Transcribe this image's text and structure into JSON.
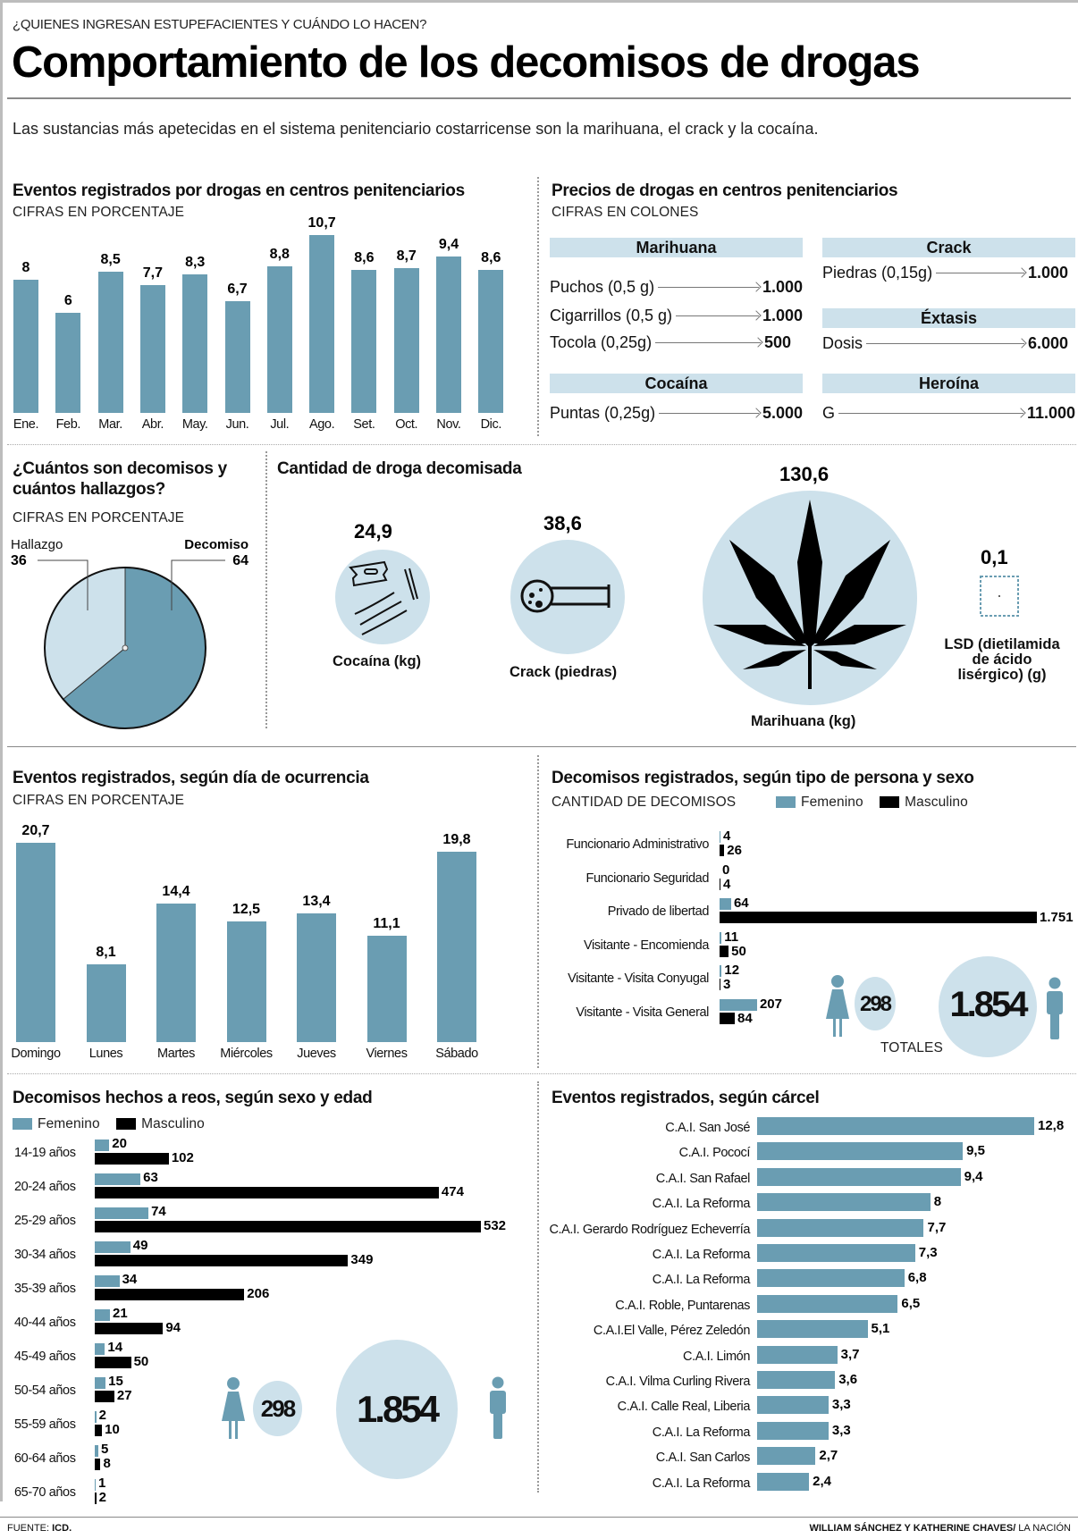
{
  "header": {
    "kicker": "¿QUIENES INGRESAN ESTUPEFACIENTES Y CUÁNDO LO HACEN?",
    "title": "Comportamiento de los decomisos de drogas",
    "intro": "Las sustancias más apetecidas en el sistema penitenciario costarricense son la marihuana, el crack y la cocaína."
  },
  "colors": {
    "bar": "#6a9db2",
    "light": "#cde1eb",
    "masculino": "#000000"
  },
  "prices": {
    "title": "Precios de drogas en centros penitenciarios",
    "subtitle": "CIFRAS EN COLONES",
    "groups": [
      {
        "name": "Marihuana",
        "items": [
          {
            "label": "Puchos (0,5 g)",
            "value": "1.000"
          },
          {
            "label": "Cigarrillos (0,5 g)",
            "value": "1.000"
          },
          {
            "label": "Tocola (0,25g)",
            "value": "500"
          }
        ]
      },
      {
        "name": "Crack",
        "items": [
          {
            "label": "Piedras (0,15g)",
            "value": "1.000"
          }
        ]
      },
      {
        "name": "Éxtasis",
        "items": [
          {
            "label": "Dosis",
            "value": "6.000"
          }
        ]
      },
      {
        "name": "Cocaína",
        "items": [
          {
            "label": "Puntas (0,25g)",
            "value": "5.000"
          }
        ]
      },
      {
        "name": "Heroína",
        "items": [
          {
            "label": "G",
            "value": "11.000"
          }
        ]
      }
    ]
  },
  "seized": {
    "title": "Cantidad de droga decomisada",
    "items": [
      {
        "name": "Cocaína (kg)",
        "value": "24,9",
        "icon": "cocaine-icon"
      },
      {
        "name": "Crack (piedras)",
        "value": "38,6",
        "icon": "crack-pipe-icon"
      },
      {
        "name": "Marihuana (kg)",
        "value": "130,6",
        "icon": "cannabis-leaf-icon"
      },
      {
        "name_lines": [
          "LSD (dietilamida",
          "de ácido",
          "lisérgico) (g)"
        ],
        "value": "0,1",
        "icon": "lsd-stamp-icon"
      }
    ]
  },
  "totals": {
    "label": "TOTALES",
    "femenino": "298",
    "masculino": "1.854"
  },
  "legend": {
    "femenino": "Femenino",
    "masculino": "Masculino"
  },
  "footer": {
    "source_prefix": "FUENTE: ",
    "source": "ICD.",
    "credit_bold": "WILLIAM SÁNCHEZ Y KATHERINE CHAVES/",
    "credit": " LA NACIÓN"
  },
  "chart_data": [
    {
      "id": "monthly",
      "type": "bar",
      "title": "Eventos registrados por drogas en centros penitenciarios",
      "subtitle": "CIFRAS EN PORCENTAJE",
      "categories": [
        "Ene.",
        "Feb.",
        "Mar.",
        "Abr.",
        "May.",
        "Jun.",
        "Jul.",
        "Ago.",
        "Set.",
        "Oct.",
        "Nov.",
        "Dic."
      ],
      "values": [
        8,
        6,
        8.5,
        7.7,
        8.3,
        6.7,
        8.8,
        10.7,
        8.6,
        8.7,
        9.4,
        8.6
      ],
      "labels": [
        "8",
        "6",
        "8,5",
        "7,7",
        "8,3",
        "6,7",
        "8,8",
        "10,7",
        "8,6",
        "8,7",
        "9,4",
        "8,6"
      ],
      "ylim": [
        0,
        11
      ]
    },
    {
      "id": "pie",
      "type": "pie",
      "title": "¿Cuántos son decomisos y cuántos hallazgos?",
      "subtitle": "CIFRAS EN PORCENTAJE",
      "slices": [
        {
          "name": "Decomiso",
          "value": 64,
          "color": "#6a9db2"
        },
        {
          "name": "Hallazgo",
          "value": 36,
          "color": "#cde1eb"
        }
      ]
    },
    {
      "id": "weekday",
      "type": "bar",
      "title": "Eventos registrados, según día de ocurrencia",
      "subtitle": "CIFRAS EN PORCENTAJE",
      "categories": [
        "Domingo",
        "Lunes",
        "Martes",
        "Miércoles",
        "Jueves",
        "Viernes",
        "Sábado"
      ],
      "values": [
        20.7,
        8.1,
        14.4,
        12.5,
        13.4,
        11.1,
        19.8
      ],
      "labels": [
        "20,7",
        "8,1",
        "14,4",
        "12,5",
        "13,4",
        "11,1",
        "19,8"
      ],
      "ylim": [
        0,
        21
      ]
    },
    {
      "id": "persontype",
      "type": "bar",
      "orientation": "horizontal",
      "title": "Decomisos registrados, según tipo de persona y sexo",
      "subtitle": "CANTIDAD DE DECOMISOS",
      "categories": [
        "Funcionario Administrativo",
        "Funcionario Seguridad",
        "Privado de libertad",
        "Visitante - Encomienda",
        "Visitante - Visita Conyugal",
        "Visitante - Visita General"
      ],
      "series": [
        {
          "name": "Femenino",
          "values": [
            4,
            0,
            64,
            11,
            12,
            207
          ],
          "labels": [
            "4",
            "0",
            "64",
            "11",
            "12",
            "207"
          ]
        },
        {
          "name": "Masculino",
          "values": [
            26,
            4,
            1751,
            50,
            3,
            84
          ],
          "labels": [
            "26",
            "4",
            "1.751",
            "50",
            "3",
            "84"
          ]
        }
      ],
      "xlim": [
        0,
        1751
      ]
    },
    {
      "id": "age",
      "type": "bar",
      "orientation": "horizontal",
      "title": "Decomisos hechos a reos, según sexo y edad",
      "categories": [
        "14-19 años",
        "20-24 años",
        "25-29 años",
        "30-34 años",
        "35-39 años",
        "40-44 años",
        "45-49 años",
        "50-54 años",
        "55-59 años",
        "60-64 años",
        "65-70 años"
      ],
      "series": [
        {
          "name": "Femenino",
          "values": [
            20,
            63,
            74,
            49,
            34,
            21,
            14,
            15,
            2,
            5,
            1
          ]
        },
        {
          "name": "Masculino",
          "values": [
            102,
            474,
            532,
            349,
            206,
            94,
            50,
            27,
            10,
            8,
            2
          ]
        }
      ],
      "xlim": [
        0,
        532
      ]
    },
    {
      "id": "prison",
      "type": "bar",
      "orientation": "horizontal",
      "title": "Eventos registrados, según cárcel",
      "categories": [
        "C.A.I. San José",
        "C.A.I. Pococí",
        "C.A.I. San Rafael",
        "C.A.I. La Reforma",
        "C.A.I. Gerardo Rodríguez Echeverría",
        "C.A.I. La Reforma",
        "C.A.I. La Reforma",
        "C.A.I. Roble, Puntarenas",
        "C.A.I.El Valle, Pérez Zeledón",
        "C.A.I. Limón",
        "C.A.I. Vilma Curling Rivera",
        "C.A.I. Calle Real, Liberia",
        "C.A.I. La Reforma",
        "C.A.I. San Carlos",
        "C.A.I. La Reforma"
      ],
      "values": [
        12.8,
        9.5,
        9.4,
        8,
        7.7,
        7.3,
        6.8,
        6.5,
        5.1,
        3.7,
        3.6,
        3.3,
        3.3,
        2.7,
        2.4
      ],
      "labels": [
        "12,8",
        "9,5",
        "9,4",
        "8",
        "7,7",
        "7,3",
        "6,8",
        "6,5",
        "5,1",
        "3,7",
        "3,6",
        "3,3",
        "3,3",
        "2,7",
        "2,4"
      ],
      "xlim": [
        0,
        12.8
      ]
    }
  ]
}
